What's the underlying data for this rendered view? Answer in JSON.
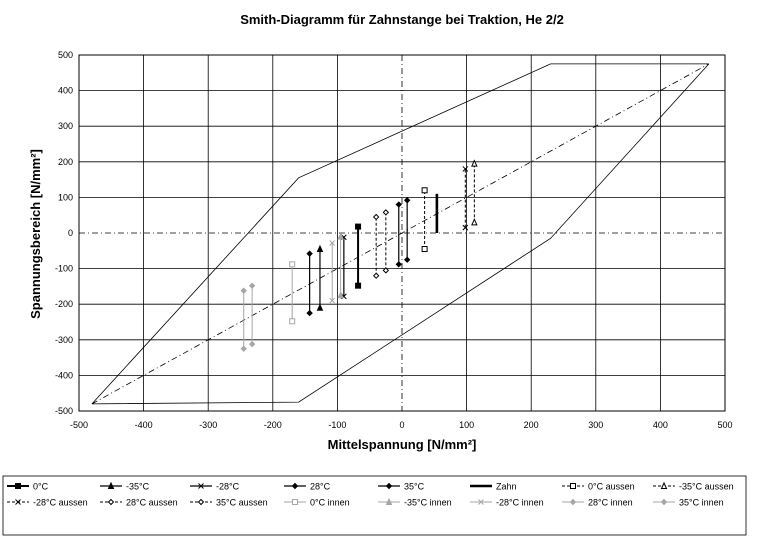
{
  "chart_data": {
    "type": "scatter",
    "title": "Smith-Diagramm für Zahnstange bei Traktion, He 2/2",
    "xlabel": "Mittelspannung [N/mm²]",
    "ylabel": "Spannungsbereich [N/mm²]",
    "xlim": [
      -500,
      500
    ],
    "ylim": [
      -500,
      500
    ],
    "x_ticks": [
      -500,
      -400,
      -300,
      -200,
      -100,
      0,
      100,
      200,
      300,
      400,
      500
    ],
    "y_ticks": [
      -500,
      -400,
      -300,
      -200,
      -100,
      0,
      100,
      200,
      300,
      400,
      500
    ],
    "grid": true,
    "legend_position": "bottom",
    "envelope": {
      "upper": [
        [
          -480,
          -480
        ],
        [
          -160,
          155
        ],
        [
          230,
          475
        ],
        [
          475,
          475
        ]
      ],
      "lower": [
        [
          -480,
          -480
        ],
        [
          -160,
          -475
        ],
        [
          230,
          -15
        ],
        [
          475,
          475
        ]
      ]
    },
    "mean_line": [
      [
        -480,
        -480
      ],
      [
        475,
        475
      ]
    ],
    "series": [
      {
        "name": "0°C",
        "color": "#000000",
        "marker": "square",
        "dash": "",
        "width": 2,
        "ranges": [
          {
            "x": -68,
            "min": -148,
            "max": 18
          }
        ]
      },
      {
        "name": "-35°C",
        "color": "#000000",
        "marker": "triangle",
        "dash": "",
        "width": 1.2,
        "ranges": [
          {
            "x": -127,
            "min": -210,
            "max": -45
          }
        ]
      },
      {
        "name": "-28°C",
        "color": "#000000",
        "marker": "x",
        "dash": "",
        "width": 1.2,
        "ranges": [
          {
            "x": -90,
            "min": -178,
            "max": -12
          }
        ]
      },
      {
        "name": "28°C",
        "color": "#000000",
        "marker": "diamond",
        "dash": "",
        "width": 1.2,
        "ranges": [
          {
            "x": -143,
            "min": -225,
            "max": -58
          }
        ]
      },
      {
        "name": "35°C",
        "color": "#000000",
        "marker": "diamond",
        "dash": "",
        "width": 1.2,
        "ranges": [
          {
            "x": -5,
            "min": -88,
            "max": 80
          },
          {
            "x": 8,
            "min": -75,
            "max": 92
          }
        ]
      },
      {
        "name": "Zahn",
        "color": "#000000",
        "marker": "none",
        "dash": "",
        "width": 2.6,
        "ranges": [
          {
            "x": 54,
            "min": 0,
            "max": 110
          }
        ]
      },
      {
        "name": "0°C aussen",
        "color": "#000000",
        "marker": "square-open",
        "dash": "3,2",
        "width": 1,
        "ranges": [
          {
            "x": 35,
            "min": -45,
            "max": 120
          }
        ]
      },
      {
        "name": "-35°C aussen",
        "color": "#000000",
        "marker": "triangle-open",
        "dash": "3,2",
        "width": 1,
        "ranges": [
          {
            "x": 112,
            "min": 30,
            "max": 195
          }
        ]
      },
      {
        "name": "-28°C aussen",
        "color": "#000000",
        "marker": "x",
        "dash": "3,2",
        "width": 1,
        "ranges": [
          {
            "x": 98,
            "min": 15,
            "max": 180
          }
        ]
      },
      {
        "name": "28°C aussen",
        "color": "#000000",
        "marker": "diamond-open",
        "dash": "3,2",
        "width": 1,
        "ranges": [
          {
            "x": -40,
            "min": -120,
            "max": 45
          }
        ]
      },
      {
        "name": "35°C aussen",
        "color": "#000000",
        "marker": "diamond-open",
        "dash": "3,2",
        "width": 1,
        "ranges": [
          {
            "x": -25,
            "min": -105,
            "max": 58
          }
        ]
      },
      {
        "name": "0°C innen",
        "color": "#a6a6a6",
        "marker": "square-open",
        "dash": "",
        "width": 1,
        "ranges": [
          {
            "x": -170,
            "min": -248,
            "max": -88
          }
        ]
      },
      {
        "name": "-35°C innen",
        "color": "#a6a6a6",
        "marker": "triangle",
        "dash": "",
        "width": 1,
        "ranges": [
          {
            "x": -95,
            "min": -175,
            "max": -10
          }
        ]
      },
      {
        "name": "-28°C innen",
        "color": "#a6a6a6",
        "marker": "x",
        "dash": "",
        "width": 1,
        "ranges": [
          {
            "x": -108,
            "min": -190,
            "max": -28
          }
        ]
      },
      {
        "name": "28°C innen",
        "color": "#a6a6a6",
        "marker": "diamond",
        "dash": "",
        "width": 1,
        "ranges": [
          {
            "x": -245,
            "min": -325,
            "max": -162
          }
        ]
      },
      {
        "name": "35°C innen",
        "color": "#a6a6a6",
        "marker": "diamond",
        "dash": "",
        "width": 1,
        "ranges": [
          {
            "x": -232,
            "min": -312,
            "max": -148
          }
        ]
      }
    ]
  }
}
